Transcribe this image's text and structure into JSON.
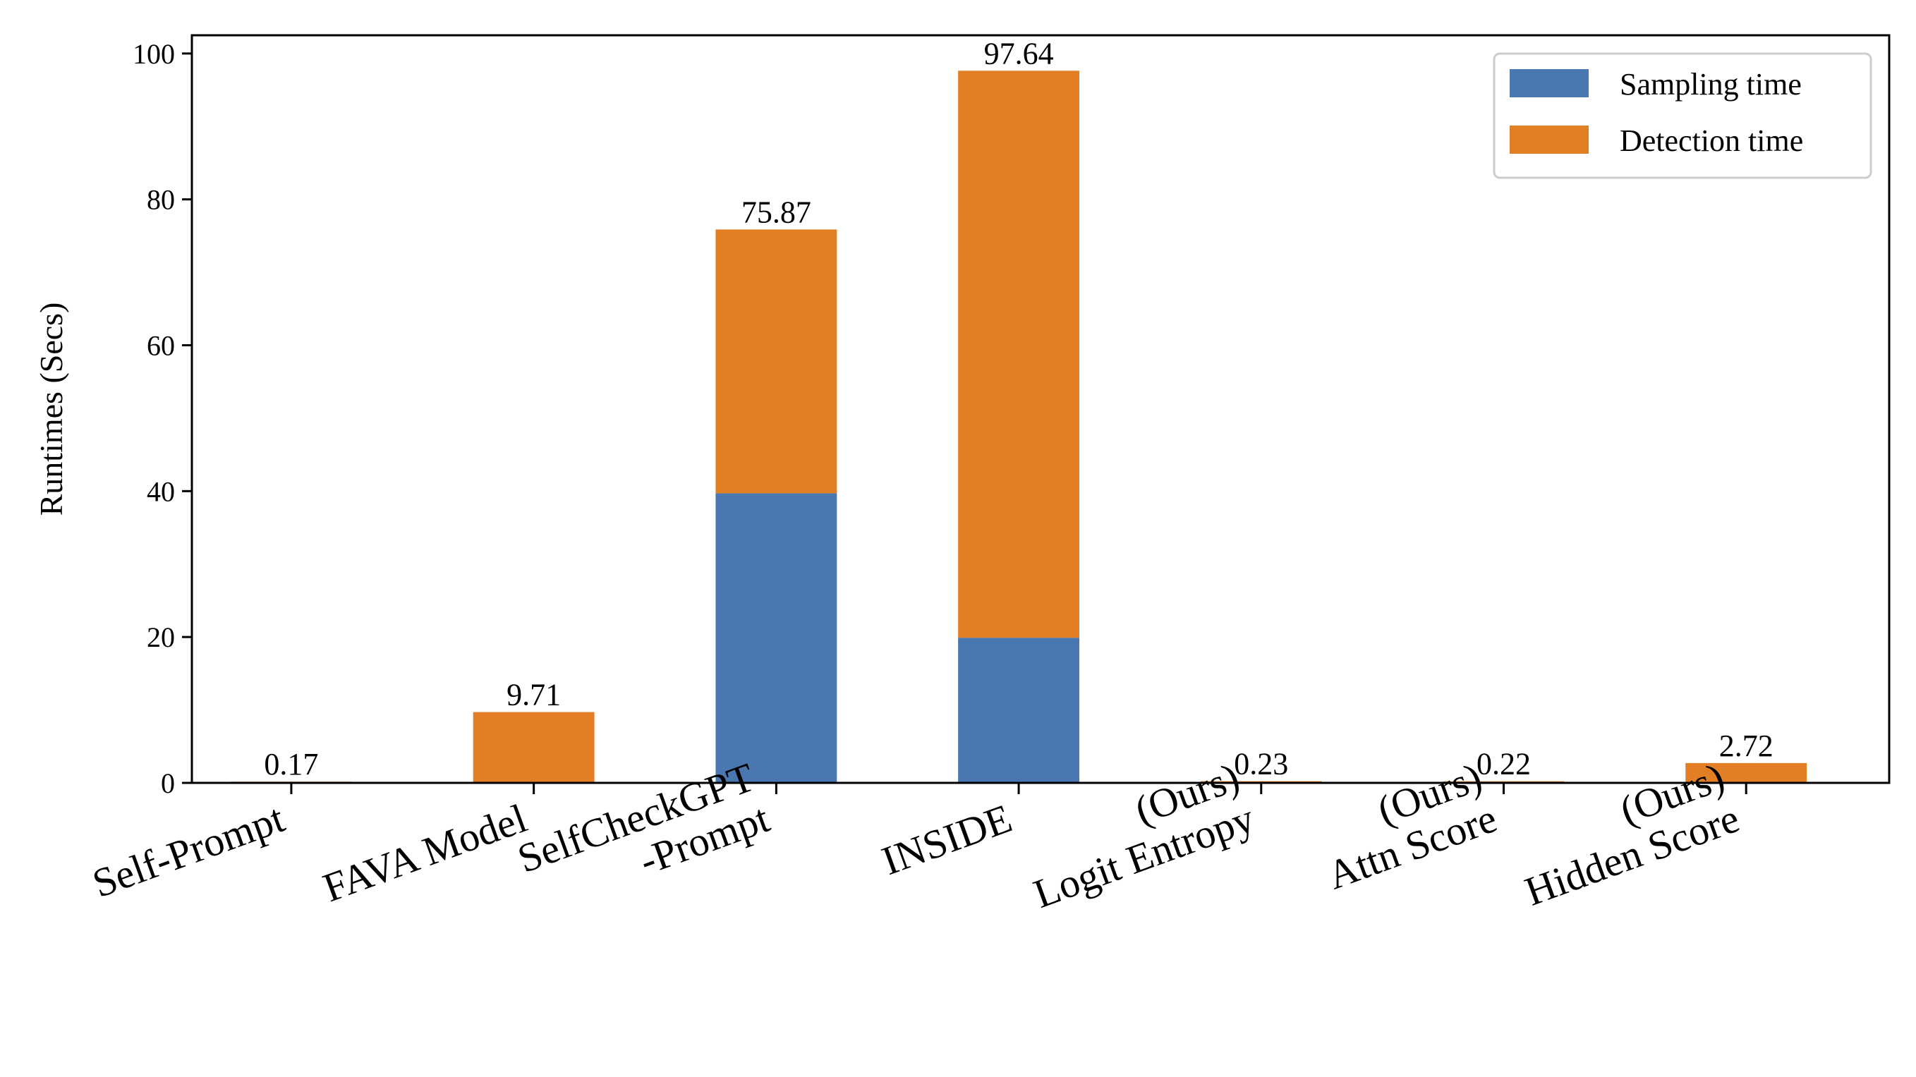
{
  "chart_data": {
    "type": "bar",
    "stacked": true,
    "categories": [
      [
        "Self-Prompt"
      ],
      [
        "FAVA Model"
      ],
      [
        "SelfCheckGPT",
        "-Prompt"
      ],
      [
        "INSIDE"
      ],
      [
        "(Ours)",
        "Logit Entropy"
      ],
      [
        "(Ours)",
        "Attn Score"
      ],
      [
        "(Ours)",
        "Hidden Score"
      ]
    ],
    "series": [
      {
        "name": "Sampling time",
        "values": [
          0,
          0,
          39.7,
          19.9,
          0,
          0,
          0
        ]
      },
      {
        "name": "Detection time",
        "values": [
          0.17,
          9.71,
          36.17,
          77.74,
          0.23,
          0.22,
          2.72
        ]
      }
    ],
    "totals_labels": [
      "0.17",
      "9.71",
      "75.87",
      "97.64",
      "0.23",
      "0.22",
      "2.72"
    ],
    "totals": [
      0.17,
      9.71,
      75.87,
      97.64,
      0.23,
      0.22,
      2.72
    ],
    "ylabel": "Runtimes (Secs)",
    "xlabel": "",
    "title": "",
    "ylim": [
      0,
      102.5
    ],
    "yticks": [
      "0",
      "20",
      "40",
      "60",
      "80",
      "100"
    ],
    "ytick_values": [
      0,
      20,
      40,
      60,
      80,
      100
    ],
    "legend_position": "top-right",
    "grid": false,
    "colors": {
      "Sampling time": "#4a77b0",
      "Detection time": "#e27e23"
    }
  }
}
